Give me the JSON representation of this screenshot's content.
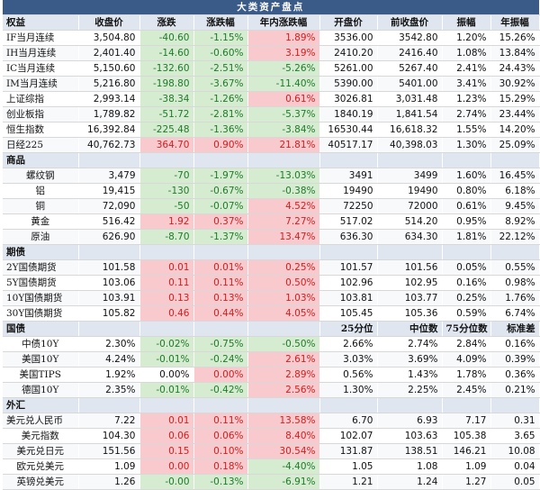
{
  "title": "大类资产盘点",
  "colors": {
    "up_text": "#d22020",
    "down_text": "#1f7a2a",
    "up_bg": "#f8c9cd",
    "down_bg": "#d5ecd0",
    "title_bg": "#3a5a88",
    "header_bg": "#dfe6ef"
  },
  "header": [
    "权益",
    "收盘价",
    "涨跌",
    "涨跌幅",
    "年内涨跌幅",
    "开盘价",
    "前收盘价",
    "振幅",
    "年振幅"
  ],
  "sections": [
    {
      "kind": "header",
      "rows": [
        {
          "name": "IF当月连续",
          "cells": [
            "3,504.80",
            "-40.60",
            "-1.15%",
            "1.89%",
            "3536.00",
            "3542.80",
            "1.20%",
            "15.26%"
          ],
          "dir": [
            "",
            "g",
            "g",
            "r",
            "",
            "",
            "",
            ""
          ]
        },
        {
          "name": "IH当月连续",
          "cells": [
            "2,401.40",
            "-14.60",
            "-0.60%",
            "3.19%",
            "2410.20",
            "2416.40",
            "1.08%",
            "13.84%"
          ],
          "dir": [
            "",
            "g",
            "g",
            "r",
            "",
            "",
            "",
            ""
          ]
        },
        {
          "name": "IC当月连续",
          "cells": [
            "5,150.60",
            "-132.60",
            "-2.51%",
            "-5.26%",
            "5261.00",
            "5267.40",
            "2.41%",
            "24.43%"
          ],
          "dir": [
            "",
            "g",
            "g",
            "g",
            "",
            "",
            "",
            ""
          ]
        },
        {
          "name": "IM当月连续",
          "cells": [
            "5,216.80",
            "-198.80",
            "-3.67%",
            "-11.40%",
            "5390.00",
            "5401.00",
            "3.41%",
            "30.92%"
          ],
          "dir": [
            "",
            "g",
            "g",
            "g",
            "",
            "",
            "",
            ""
          ]
        },
        {
          "name": "上证综指",
          "cells": [
            "2,993.14",
            "-38.34",
            "-1.26%",
            "0.61%",
            "3026.81",
            "3,031.48",
            "1.23%",
            "15.29%"
          ],
          "dir": [
            "",
            "g",
            "g",
            "r",
            "",
            "",
            "",
            ""
          ]
        },
        {
          "name": "创业板指",
          "cells": [
            "1,789.82",
            "-51.72",
            "-2.81%",
            "-5.37%",
            "1840.19",
            "1,841.54",
            "2.74%",
            "23.44%"
          ],
          "dir": [
            "",
            "g",
            "g",
            "g",
            "",
            "",
            "",
            ""
          ]
        },
        {
          "name": "恒生指数",
          "cells": [
            "16,392.84",
            "-225.48",
            "-1.36%",
            "-3.84%",
            "16530.44",
            "16,618.32",
            "1.55%",
            "14.20%"
          ],
          "dir": [
            "",
            "g",
            "g",
            "g",
            "",
            "",
            "",
            ""
          ]
        },
        {
          "name": "日经225",
          "cells": [
            "40,762.73",
            "364.70",
            "0.90%",
            "21.81%",
            "40517.17",
            "40,398.03",
            "1.30%",
            "25.09%"
          ],
          "dir": [
            "",
            "r",
            "r",
            "r",
            "",
            "",
            "",
            ""
          ]
        }
      ]
    },
    {
      "kind": "section",
      "label": "商品",
      "extra": [
        "",
        "",
        "",
        "",
        "",
        "",
        "",
        ""
      ],
      "rows": [
        {
          "name": "螺纹钢",
          "center": true,
          "cells": [
            "3,479",
            "-70",
            "-1.97%",
            "-13.03%",
            "3491",
            "3499",
            "1.60%",
            "16.45%"
          ],
          "dir": [
            "",
            "g",
            "g",
            "g",
            "",
            "",
            "",
            ""
          ]
        },
        {
          "name": "铝",
          "center": true,
          "cells": [
            "19,415",
            "-130",
            "-0.67%",
            "-0.38%",
            "19490",
            "19490",
            "0.80%",
            "6.18%"
          ],
          "dir": [
            "",
            "g",
            "g",
            "g",
            "",
            "",
            "",
            ""
          ]
        },
        {
          "name": "铜",
          "center": true,
          "cells": [
            "72,090",
            "-50",
            "-0.07%",
            "4.52%",
            "72250",
            "72000",
            "0.61%",
            "9.45%"
          ],
          "dir": [
            "",
            "g",
            "g",
            "r",
            "",
            "",
            "",
            ""
          ]
        },
        {
          "name": "黄金",
          "center": true,
          "cells": [
            "516.42",
            "1.92",
            "0.37%",
            "7.27%",
            "517.02",
            "514.20",
            "0.95%",
            "8.92%"
          ],
          "dir": [
            "",
            "r",
            "r",
            "r",
            "",
            "",
            "",
            ""
          ]
        },
        {
          "name": "原油",
          "center": true,
          "cells": [
            "626.90",
            "-8.70",
            "-1.37%",
            "13.47%",
            "636.30",
            "634.30",
            "1.81%",
            "22.12%"
          ],
          "dir": [
            "",
            "g",
            "g",
            "r",
            "",
            "",
            "",
            ""
          ]
        }
      ]
    },
    {
      "kind": "section",
      "label": "期债",
      "extra": [
        "",
        "",
        "",
        "",
        "",
        "",
        "",
        ""
      ],
      "rows": [
        {
          "name": "2Y国债期货",
          "cells": [
            "101.58",
            "0.01",
            "0.01%",
            "0.25%",
            "101.57",
            "101.56",
            "0.05%",
            "0.55%"
          ],
          "dir": [
            "",
            "r",
            "r",
            "r",
            "",
            "",
            "",
            ""
          ]
        },
        {
          "name": "5Y国债期货",
          "cells": [
            "103.06",
            "0.11",
            "0.11%",
            "0.50%",
            "102.96",
            "102.95",
            "0.16%",
            "0.98%"
          ],
          "dir": [
            "",
            "r",
            "r",
            "r",
            "",
            "",
            "",
            ""
          ]
        },
        {
          "name": "10Y国债期货",
          "cells": [
            "103.91",
            "0.13",
            "0.13%",
            "1.03%",
            "103.81",
            "103.77",
            "0.25%",
            "1.76%"
          ],
          "dir": [
            "",
            "r",
            "r",
            "r",
            "",
            "",
            "",
            ""
          ]
        },
        {
          "name": "30Y国债期货",
          "cells": [
            "105.82",
            "0.46",
            "0.44%",
            "4.05%",
            "105.45",
            "105.36",
            "0.59%",
            "6.74%"
          ],
          "dir": [
            "",
            "r",
            "r",
            "r",
            "",
            "",
            "",
            ""
          ]
        }
      ]
    },
    {
      "kind": "section",
      "label": "国债",
      "extra": [
        "",
        "",
        "",
        "",
        "25分位",
        "中位数",
        "75分位数",
        "标准差"
      ],
      "rows": [
        {
          "name": "中债10Y",
          "center": true,
          "cells": [
            "2.30%",
            "-0.02%",
            "-0.75%",
            "-0.50%",
            "2.66%",
            "2.74%",
            "2.84%",
            "0.16%"
          ],
          "dir": [
            "",
            "g",
            "g",
            "g",
            "",
            "",
            "",
            ""
          ]
        },
        {
          "name": "美国10Y",
          "center": true,
          "cells": [
            "4.24%",
            "-0.01%",
            "-0.24%",
            "2.61%",
            "3.03%",
            "3.69%",
            "4.09%",
            "0.39%"
          ],
          "dir": [
            "",
            "g",
            "g",
            "r",
            "",
            "",
            "",
            ""
          ]
        },
        {
          "name": "美国TIPS",
          "center": true,
          "cells": [
            "1.92%",
            "0.00%",
            "0.00%",
            "2.89%",
            "0.56%",
            "1.43%",
            "1.78%",
            "0.36%"
          ],
          "dir": [
            "",
            "",
            "r",
            "r",
            "",
            "",
            "",
            ""
          ]
        },
        {
          "name": "德国10Y",
          "center": true,
          "cells": [
            "2.35%",
            "-0.01%",
            "-0.42%",
            "2.56%",
            "1.30%",
            "2.25%",
            "2.45%",
            "0.21%"
          ],
          "dir": [
            "",
            "g",
            "g",
            "r",
            "",
            "",
            "",
            ""
          ]
        }
      ]
    },
    {
      "kind": "section",
      "label": "外汇",
      "extra": [
        "",
        "",
        "",
        "",
        "",
        "",
        "",
        ""
      ],
      "rows": [
        {
          "name": "美元兑人民币",
          "cells": [
            "7.22",
            "0.01",
            "0.11%",
            "13.58%",
            "6.70",
            "6.93",
            "7.17",
            "0.31"
          ],
          "dir": [
            "",
            "r",
            "r",
            "r",
            "",
            "",
            "",
            ""
          ]
        },
        {
          "name": "美元指数",
          "center": true,
          "cells": [
            "104.30",
            "0.06",
            "0.06%",
            "8.40%",
            "102.07",
            "103.63",
            "105.38",
            "3.65"
          ],
          "dir": [
            "",
            "r",
            "r",
            "r",
            "",
            "",
            "",
            ""
          ]
        },
        {
          "name": "美元兑日元",
          "center": true,
          "cells": [
            "151.56",
            "0.15",
            "0.10%",
            "30.54%",
            "131.87",
            "138.51",
            "146.21",
            "10.08"
          ],
          "dir": [
            "",
            "r",
            "r",
            "r",
            "",
            "",
            "",
            ""
          ]
        },
        {
          "name": "欧元兑美元",
          "center": true,
          "cells": [
            "1.09",
            "0.00",
            "0.18%",
            "-4.40%",
            "1.05",
            "1.08",
            "1.09",
            "0.04"
          ],
          "dir": [
            "",
            "r",
            "r",
            "g",
            "",
            "",
            "",
            ""
          ]
        },
        {
          "name": "英镑兑美元",
          "center": true,
          "cells": [
            "1.26",
            "-0.00",
            "-0.13%",
            "-6.91%",
            "1.21",
            "1.24",
            "1.27",
            "0.05"
          ],
          "dir": [
            "",
            "g",
            "g",
            "g",
            "",
            "",
            "",
            ""
          ]
        }
      ]
    }
  ]
}
